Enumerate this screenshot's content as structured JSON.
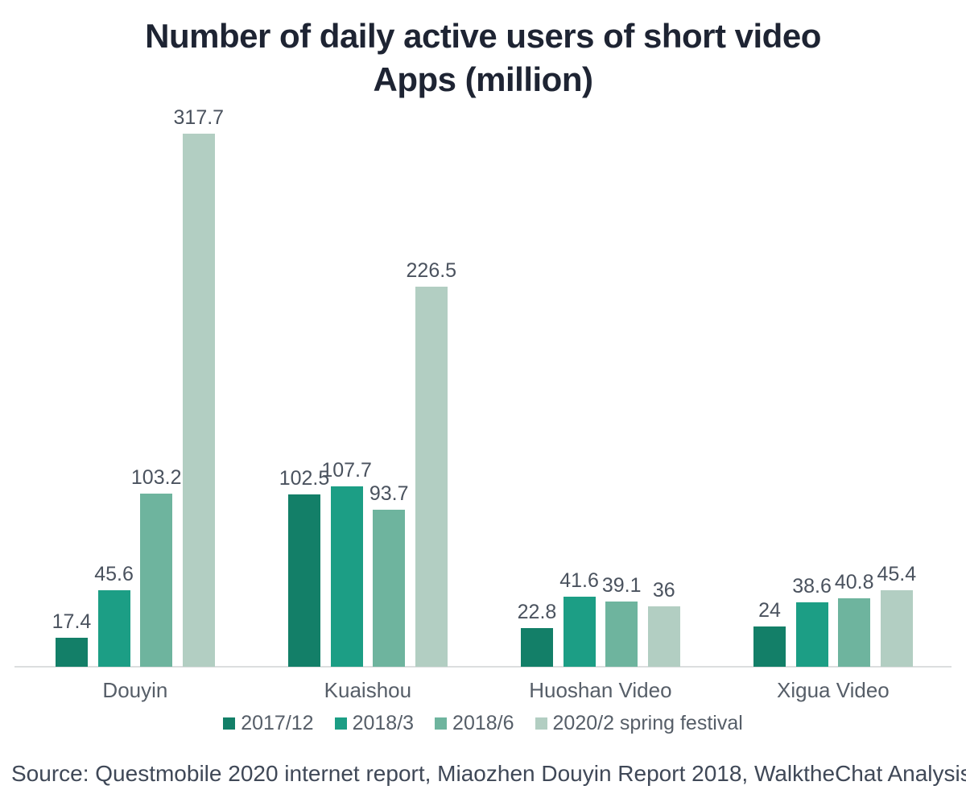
{
  "title": "Number of daily active users of short video Apps (million)",
  "source_note": "Source: Questmobile 2020 internet report, Miaozhen Douyin Report 2018, WalktheChat Analysis",
  "colors": {
    "background": "#ffffff",
    "title_text": "#1e2433",
    "value_label_text": "#4a525e",
    "category_label_text": "#565e68",
    "legend_text": "#565e68",
    "source_text": "#3f4857",
    "axis_line": "#dcdedf"
  },
  "chart_data": {
    "type": "bar",
    "title": "Number of daily active users of short video Apps (million)",
    "categories": [
      "Douyin",
      "Kuaishou",
      "Huoshan Video",
      "Xigua Video"
    ],
    "series": [
      {
        "name": "2017/12",
        "color": "#137f68",
        "values": [
          17.4,
          102.5,
          22.8,
          24
        ]
      },
      {
        "name": "2018/3",
        "color": "#1c9e85",
        "values": [
          45.6,
          107.7,
          41.6,
          38.6
        ]
      },
      {
        "name": "2018/6",
        "color": "#6eb49e",
        "values": [
          103.2,
          93.7,
          39.1,
          40.8
        ]
      },
      {
        "name": "2020/2 spring festival",
        "color": "#b2cec2",
        "values": [
          317.7,
          226.5,
          36,
          45.4
        ]
      }
    ],
    "value_labels_shown": true,
    "grid": false,
    "y_axis_shown": false,
    "legend_position": "bottom",
    "ylim": [
      0,
      330
    ]
  }
}
